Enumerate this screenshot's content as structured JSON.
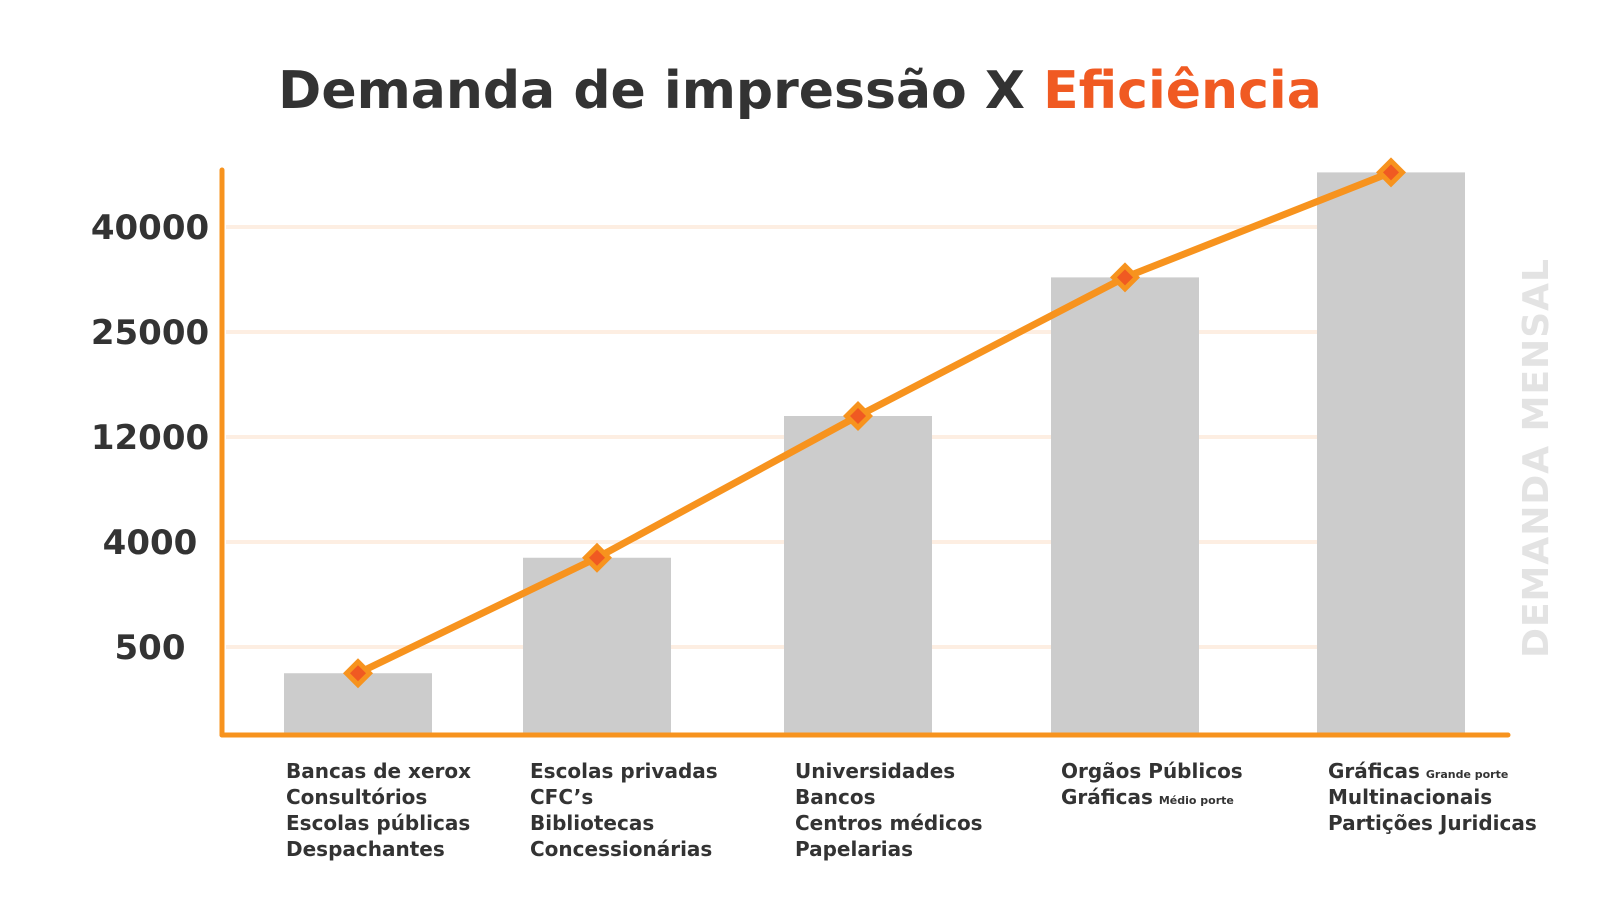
{
  "title": {
    "main": "Demanda de impressão X ",
    "accent": "Eficiência"
  },
  "side_label": "DEMANDA MENSAL",
  "colors": {
    "accent_orange": "#f7931e",
    "title_accent": "#f05a22",
    "bar_gray": "#cccccc",
    "grid": "#fdeee2",
    "marker_fill": "#f05a22",
    "text": "#333333"
  },
  "chart_data": {
    "type": "bar",
    "title": "Demanda de impressão X Eficiência",
    "ylabel": "DEMANDA MENSAL",
    "y_ticks": [
      "500",
      "4000",
      "12000",
      "25000",
      "40000"
    ],
    "grid": true,
    "categories": [
      {
        "lines": [
          {
            "text": "Bancas de xerox"
          },
          {
            "text": "Consultórios"
          },
          {
            "text": "Escolas públicas"
          },
          {
            "text": "Despachantes"
          }
        ]
      },
      {
        "lines": [
          {
            "text": "Escolas privadas"
          },
          {
            "text": "CFC’s"
          },
          {
            "text": "Bibliotecas"
          },
          {
            "text": "Concessionárias"
          }
        ]
      },
      {
        "lines": [
          {
            "text": "Universidades"
          },
          {
            "text": "Bancos"
          },
          {
            "text": "Centros médicos"
          },
          {
            "text": "Papelarias"
          }
        ]
      },
      {
        "lines": [
          {
            "text": "Orgãos Públicos"
          },
          {
            "text": "Gráficas",
            "small": "Médio porte"
          }
        ]
      },
      {
        "lines": [
          {
            "text": "Gráficas",
            "small": "Grande porte"
          },
          {
            "text": "Multinacionais"
          },
          {
            "text": "Partições Juridicas"
          }
        ]
      }
    ],
    "values_tick_scale": [
      0.75,
      1.85,
      3.2,
      4.52,
      5.52
    ],
    "trend_line": true
  }
}
